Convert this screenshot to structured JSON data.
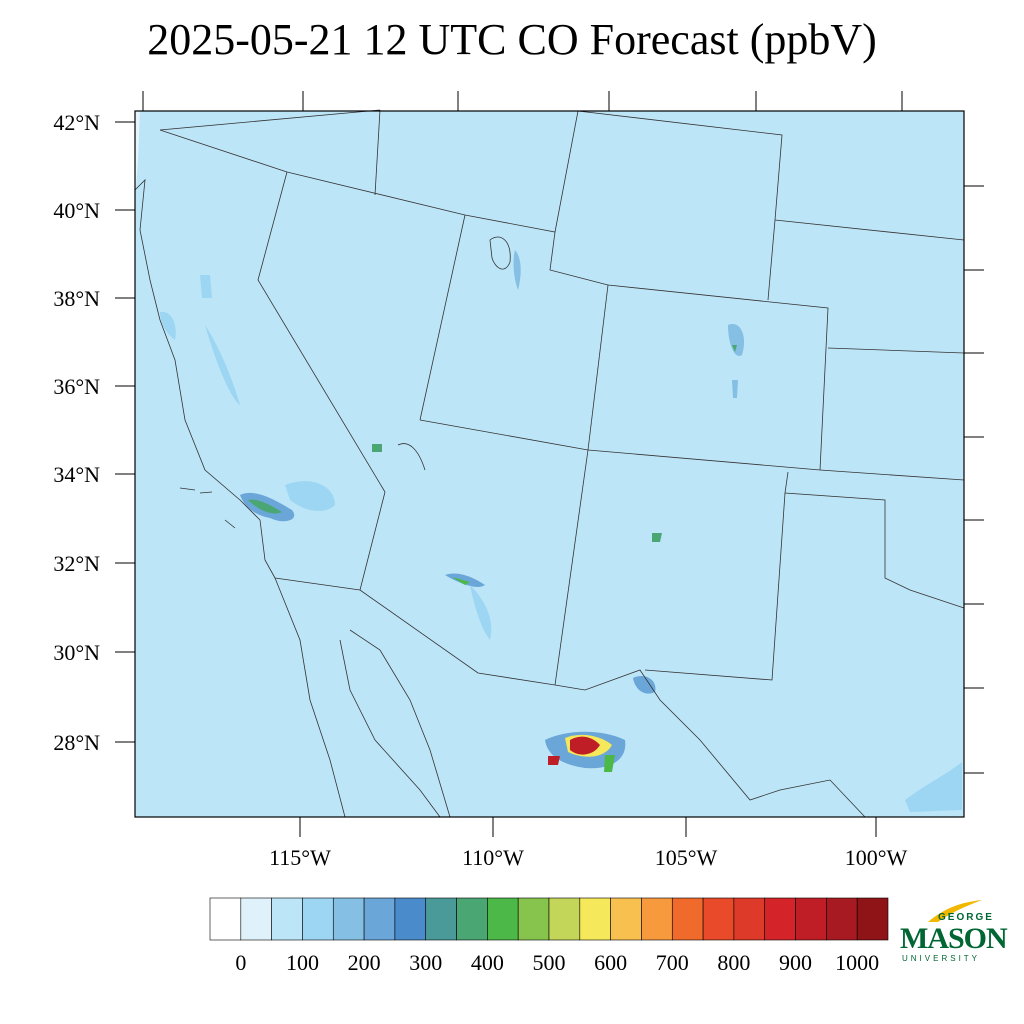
{
  "title": "2025-05-21 12 UTC CO Forecast (ppbV)",
  "map": {
    "background_color": "#bde5f8",
    "lat_labels": [
      "42°N",
      "40°N",
      "38°N",
      "36°N",
      "34°N",
      "32°N",
      "30°N",
      "28°N"
    ],
    "lon_labels": [
      "115°W",
      "110°W",
      "105°W",
      "100°W"
    ]
  },
  "colorbar": {
    "colors": [
      "#ffffff",
      "#dff2fc",
      "#bde5f8",
      "#9dd6f3",
      "#85bfe3",
      "#6aa6d8",
      "#4a8bcb",
      "#4a9a9a",
      "#4aa672",
      "#4cb848",
      "#86c44e",
      "#c4d65a",
      "#f5e85a",
      "#f8c04e",
      "#f79a3e",
      "#f06a2c",
      "#e84a2a",
      "#de3a2a",
      "#d4242a",
      "#c01e26",
      "#a81a22",
      "#8e1418"
    ],
    "labels": [
      "0",
      "100",
      "200",
      "300",
      "400",
      "500",
      "600",
      "700",
      "800",
      "900",
      "1000"
    ]
  },
  "logo": {
    "george": "GEORGE",
    "mason": "MASON",
    "university": "UNIVERSITY",
    "colors": {
      "green": "#006633",
      "gold": "#f2b800"
    }
  }
}
